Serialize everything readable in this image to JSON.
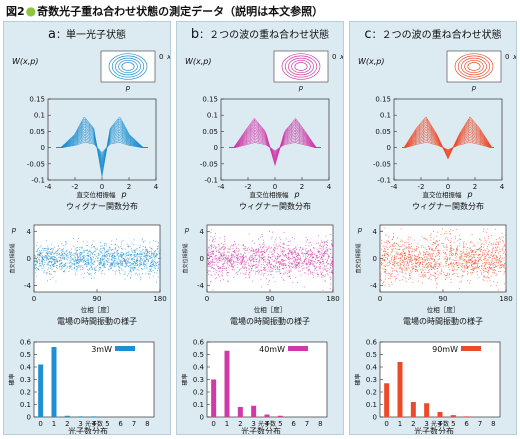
{
  "figure_title": {
    "prefix": "図2",
    "rest": "奇数光子重ね合わせ状態の測定データ（説明は本文参照）"
  },
  "panels": [
    {
      "letter": "a",
      "title": "単一光子状態",
      "color": "#1f8fd0"
    },
    {
      "letter": "b",
      "title": "２つの波の重ね合わせ状態",
      "color": "#cf3aa8"
    },
    {
      "letter": "c",
      "title": "２つの波の重ね合わせ状態",
      "color": "#ec4b2b"
    }
  ],
  "wigner": {
    "ylabel": "W(x,p)",
    "xlabel": "直交位相振幅",
    "xlabel_var": "p",
    "caption": "ウィグナー関数分布",
    "inset_x": "x",
    "inset_p": "p"
  },
  "phase": {
    "ylabel": "直交位相振幅",
    "ylabel_var": "p",
    "xlabel": "位相［度］",
    "caption": "電場の時間振動の様子"
  },
  "dist": {
    "ylabel": "確率",
    "xlabel": "光子数",
    "caption": "光子数分布"
  },
  "chart_data": [
    {
      "type": "surface",
      "title": "a：単一光子状態",
      "ylabel": "W(x,p)",
      "xlabel": "直交位相振幅 p",
      "xlim": [
        -4,
        4
      ],
      "ylim": [
        -0.1,
        0.15
      ],
      "xticks": [
        -4,
        -2,
        0,
        2,
        4
      ],
      "yticks": [
        0.15,
        0.1,
        0.05,
        0,
        -0.05,
        -0.1
      ],
      "curve": {
        "p": [
          -3,
          -2,
          -1.3,
          -0.6,
          0,
          0.6,
          1.3,
          2,
          3
        ],
        "w": [
          0.0,
          0.04,
          0.095,
          0.06,
          -0.09,
          0.06,
          0.095,
          0.04,
          0.0
        ]
      }
    },
    {
      "type": "surface",
      "title": "b：２つの波の重ね合わせ状態",
      "ylabel": "W(x,p)",
      "xlabel": "直交位相振幅 p",
      "xlim": [
        -4,
        4
      ],
      "ylim": [
        -0.1,
        0.15
      ],
      "xticks": [
        -4,
        -2,
        0,
        2,
        4
      ],
      "yticks": [
        0.15,
        0.1,
        0.05,
        0,
        -0.05,
        -0.1
      ],
      "curve": {
        "p": [
          -3,
          -2.2,
          -1.5,
          -0.7,
          0,
          0.7,
          1.5,
          2.2,
          3
        ],
        "w": [
          0.0,
          0.05,
          0.09,
          0.05,
          -0.055,
          0.05,
          0.09,
          0.05,
          0.0
        ]
      }
    },
    {
      "type": "surface",
      "title": "c：２つの波の重ね合わせ状態",
      "ylabel": "W(x,p)",
      "xlabel": "直交位相振幅 p",
      "xlim": [
        -4,
        4
      ],
      "ylim": [
        -0.1,
        0.15
      ],
      "xticks": [
        -4,
        -2,
        0,
        2,
        4
      ],
      "yticks": [
        0.15,
        0.1,
        0.05,
        0,
        -0.05,
        -0.1
      ],
      "curve": {
        "p": [
          -3.2,
          -2.3,
          -1.6,
          -0.8,
          0,
          0.8,
          1.6,
          2.3,
          3.2
        ],
        "w": [
          0.0,
          0.06,
          0.095,
          0.04,
          -0.035,
          0.04,
          0.095,
          0.06,
          0.0
        ]
      }
    },
    {
      "type": "scatter",
      "title": "電場の時間振動の様子",
      "xlabel": "位相［度］",
      "ylabel": "直交位相振幅 p",
      "xlim": [
        0,
        180
      ],
      "ylim": [
        -5,
        5
      ],
      "xticks": [
        0,
        90,
        180
      ],
      "yticks": [
        4,
        0,
        -4
      ],
      "spread": 2.0
    },
    {
      "type": "scatter",
      "title": "電場の時間振動の様子",
      "xlabel": "位相［度］",
      "ylabel": "直交位相振幅 p",
      "xlim": [
        0,
        180
      ],
      "ylim": [
        -5,
        5
      ],
      "xticks": [
        0,
        90,
        180
      ],
      "yticks": [
        4,
        0,
        -4
      ],
      "spread": 2.5
    },
    {
      "type": "scatter",
      "title": "電場の時間振動の様子",
      "xlabel": "位相［度］",
      "ylabel": "直交位相振幅 p",
      "xlim": [
        0,
        180
      ],
      "ylim": [
        -5,
        5
      ],
      "xticks": [
        0,
        90,
        180
      ],
      "yticks": [
        4,
        0,
        -4
      ],
      "spread": 3.0
    },
    {
      "type": "bar",
      "title": "光子数分布",
      "legend": "3mW",
      "xlabel": "光子数",
      "ylabel": "確率",
      "categories": [
        0,
        1,
        2,
        3,
        4,
        5,
        6,
        7,
        8
      ],
      "values": [
        0.42,
        0.56,
        0.01,
        0.005,
        0.005,
        0,
        0,
        0,
        0
      ],
      "ylim": [
        0,
        0.6
      ],
      "yticks": [
        0,
        0.1,
        0.2,
        0.3,
        0.4,
        0.5,
        0.6
      ]
    },
    {
      "type": "bar",
      "title": "光子数分布",
      "legend": "40mW",
      "xlabel": "光子数",
      "ylabel": "確率",
      "categories": [
        0,
        1,
        2,
        3,
        4,
        5,
        6,
        7,
        8
      ],
      "values": [
        0.3,
        0.53,
        0.08,
        0.09,
        0.02,
        0.01,
        0,
        0,
        0
      ],
      "ylim": [
        0,
        0.6
      ],
      "yticks": [
        0,
        0.1,
        0.2,
        0.3,
        0.4,
        0.5,
        0.6
      ]
    },
    {
      "type": "bar",
      "title": "光子数分布",
      "legend": "90mW",
      "xlabel": "光子数",
      "ylabel": "確率",
      "categories": [
        0,
        1,
        2,
        3,
        4,
        5,
        6,
        7,
        8
      ],
      "values": [
        0.27,
        0.44,
        0.12,
        0.11,
        0.04,
        0.015,
        0.005,
        0,
        0
      ],
      "ylim": [
        0,
        0.6
      ],
      "yticks": [
        0,
        0.1,
        0.2,
        0.3,
        0.4,
        0.5,
        0.6
      ]
    }
  ]
}
